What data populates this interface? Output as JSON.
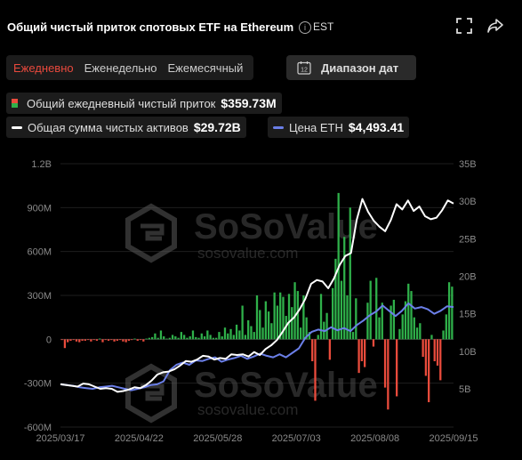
{
  "header": {
    "title": "Общий чистый приток спотовых ETF на Ethereum",
    "info_symbol": "i",
    "timezone": "EST"
  },
  "tabs": [
    {
      "label": "Ежедневно",
      "active": true
    },
    {
      "label": "Еженедельно",
      "active": false
    },
    {
      "label": "Ежемесячный",
      "active": false
    }
  ],
  "date_range": {
    "label": "Диапазон дат",
    "icon_text": "12"
  },
  "legend": {
    "flow": {
      "label": "Общий ежедневный чистый приток",
      "value": "$359.73M"
    },
    "assets": {
      "label": "Общая сумма чистых активов",
      "value": "$29.72B"
    },
    "price": {
      "label": "Цена ETH",
      "value": "$4,493.41"
    }
  },
  "watermark": {
    "brand": "SoSoValue",
    "url": "sosovalue.com"
  },
  "colors": {
    "inflow": "#2fb04a",
    "outflow": "#e94b3c",
    "assets_line": "#ffffff",
    "price_line": "#6b7fe8",
    "active_tab": "#e8493d"
  },
  "chart_data": {
    "type": "bar",
    "left_axis": {
      "ticks": [
        "1.2B",
        "900M",
        "600M",
        "300M",
        "0",
        "-300M",
        "-600M"
      ],
      "values": [
        1200,
        900,
        600,
        300,
        0,
        -300,
        -600
      ],
      "unit": "M USD"
    },
    "right_axis": {
      "ticks": [
        "35B",
        "30B",
        "25B",
        "20B",
        "15B",
        "10B",
        "5B"
      ],
      "values": [
        35,
        30,
        25,
        20,
        15,
        10,
        5
      ],
      "unit": "B USD"
    },
    "x_ticks": [
      "2025/03/17",
      "2025/04/22",
      "2025/05/28",
      "2025/07/03",
      "2025/08/08",
      "2025/09/15"
    ],
    "dates_start": "2025/03/17",
    "dates_end": "2025/09/15",
    "series": [
      {
        "name": "Общий ежедневный чистый приток",
        "kind": "bar",
        "values": [
          -5,
          -60,
          -20,
          -10,
          -5,
          -15,
          -20,
          -10,
          -10,
          -5,
          -15,
          -5,
          -10,
          5,
          -20,
          -5,
          -10,
          -5,
          -15,
          -10,
          -5,
          -15,
          -20,
          -10,
          -5,
          5,
          -10,
          -5,
          -15,
          5,
          10,
          15,
          40,
          10,
          60,
          20,
          5,
          10,
          30,
          20,
          10,
          50,
          30,
          10,
          20,
          60,
          15,
          10,
          40,
          20,
          60,
          30,
          10,
          10,
          50,
          20,
          80,
          40,
          70,
          30,
          100,
          60,
          230,
          30,
          130,
          90,
          50,
          300,
          200,
          80,
          260,
          190,
          110,
          320,
          230,
          320,
          290,
          160,
          310,
          220,
          390,
          330,
          80,
          300,
          150,
          50,
          -150,
          -420,
          30,
          310,
          120,
          180,
          -140,
          350,
          550,
          1000,
          400,
          700,
          300,
          900,
          50,
          280,
          -230,
          -150,
          -190,
          250,
          400,
          -50,
          420,
          150,
          250,
          -330,
          -480,
          230,
          270,
          -390,
          70,
          170,
          260,
          380,
          330,
          150,
          80,
          110,
          -120,
          -250,
          -430,
          30,
          -150,
          -180,
          -280,
          60,
          170,
          390,
          360
        ]
      },
      {
        "name": "Общая сумма чистых активов",
        "kind": "line",
        "axis": "right",
        "values": [
          5.6,
          5.5,
          5.4,
          5.3,
          5.7,
          5.6,
          5.3,
          5.0,
          5.1,
          5.0,
          4.6,
          4.7,
          4.9,
          5.2,
          5.1,
          5.5,
          6.1,
          6.9,
          7.2,
          7.3,
          7.6,
          8.1,
          8.7,
          8.6,
          8.9,
          9.4,
          9.3,
          8.9,
          9.1,
          9.0,
          9.6,
          9.5,
          9.6,
          9.3,
          9.9,
          9.5,
          10.3,
          10.8,
          11.5,
          12.6,
          13.8,
          14.5,
          15.6,
          17.0,
          19.0,
          19.5,
          19.3,
          18.4,
          19.7,
          21.5,
          22.7,
          23.1,
          27.5,
          30.3,
          28.6,
          27.4,
          26.6,
          26.0,
          27.5,
          29.6,
          28.9,
          30.1,
          28.7,
          29.3,
          28.0,
          27.6,
          27.8,
          28.8,
          30.1,
          29.7
        ]
      },
      {
        "name": "Цена ETH",
        "kind": "line",
        "axis": "right",
        "values": [
          5.6,
          5.5,
          5.4,
          5.2,
          5.1,
          5.0,
          5.2,
          5.3,
          5.4,
          5.2,
          5.0,
          4.8,
          5.0,
          5.2,
          5.5,
          5.6,
          6.0,
          7.5,
          8.2,
          8.5,
          8.2,
          8.8,
          8.7,
          9.0,
          9.2,
          8.6,
          8.9,
          9.1,
          9.4,
          9.0,
          9.3,
          9.7,
          9.4,
          9.2,
          9.6,
          9.2,
          9.8,
          10.4,
          11.8,
          12.6,
          12.9,
          12.7,
          13.2,
          12.8,
          13.1,
          12.7,
          13.5,
          14.1,
          14.8,
          15.3,
          16.1,
          15.4,
          14.7,
          15.4,
          16.4,
          15.7,
          15.9,
          15.6,
          15.0,
          15.4,
          16.0,
          15.9
        ]
      }
    ]
  }
}
